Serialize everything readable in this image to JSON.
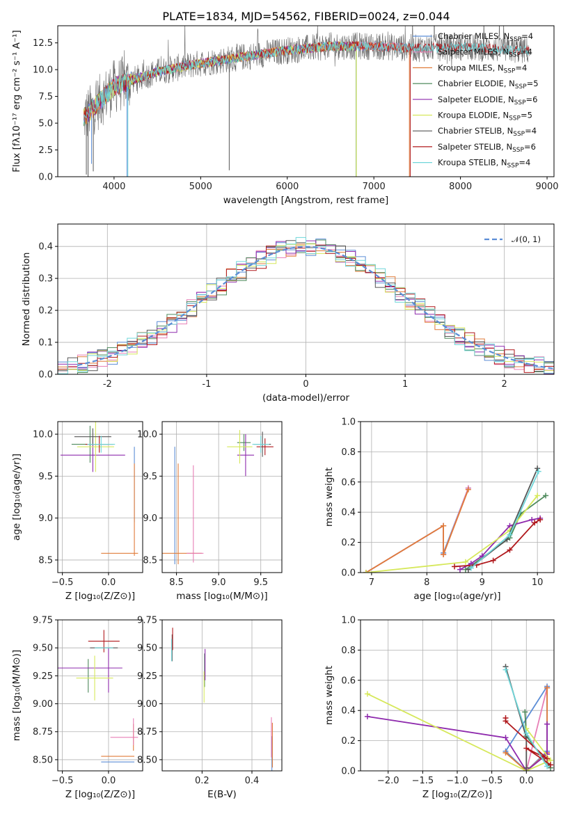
{
  "title": "PLATE=1834, MJD=54562, FIBERID=0024, z=0.044",
  "colors": {
    "Chabrier MILES": "#5b8dd6",
    "Salpeter MILES": "#e77fb6",
    "Kroupa MILES": "#e07b39",
    "Chabrier ELODIE": "#4e8a5c",
    "Salpeter ELODIE": "#8e2aad",
    "Kroupa ELODIE": "#d6e85a",
    "Chabrier STELIB": "#555555",
    "Salpeter STELIB": "#b0181c",
    "Kroupa STELIB": "#6fd6d9"
  },
  "chart_data": [
    {
      "id": "spectrum",
      "type": "line",
      "title": "PLATE=1834, MJD=54562, FIBERID=0024, z=0.044",
      "xlabel": "wavelength [Angstrom, rest frame]",
      "ylabel": "Flux [fλ10⁻¹⁷ erg cm⁻² s⁻¹ A⁻¹]",
      "xlim": [
        3350,
        9080
      ],
      "ylim": [
        0,
        14.1
      ],
      "xticks": [
        4000,
        5000,
        6000,
        7000,
        8000,
        9000
      ],
      "yticks": [
        0.0,
        2.5,
        5.0,
        7.5,
        10.0,
        12.5
      ],
      "ytick_labels": [
        "0.0",
        "2.5",
        "5.0",
        "7.5",
        "10.0",
        "12.5"
      ],
      "grid": false,
      "legend_position": "right",
      "legend": [
        {
          "main": "Chabrier MILES, N",
          "sub": "SSP",
          "tail": "=4"
        },
        {
          "main": "Salpeter MILES, N",
          "sub": "SSP",
          "tail": "=4"
        },
        {
          "main": "Kroupa MILES, N",
          "sub": "SSP",
          "tail": "=4"
        },
        {
          "main": "Chabrier ELODIE, N",
          "sub": "SSP",
          "tail": "=5"
        },
        {
          "main": "Salpeter ELODIE, N",
          "sub": "SSP",
          "tail": "=6"
        },
        {
          "main": "Kroupa ELODIE, N",
          "sub": "SSP",
          "tail": "=5"
        },
        {
          "main": "Chabrier STELIB, N",
          "sub": "SSP",
          "tail": "=4"
        },
        {
          "main": "Salpeter STELIB, N",
          "sub": "SSP",
          "tail": "=6"
        },
        {
          "main": "Kroupa STELIB, N",
          "sub": "SSP",
          "tail": "=4"
        }
      ],
      "continuum_x": [
        3650,
        3750,
        3900,
        4000,
        4200,
        4500,
        5000,
        5500,
        6000,
        6500,
        7000,
        7500,
        8000,
        8500,
        8800
      ],
      "continuum_y": [
        5.5,
        6.3,
        7.6,
        8.4,
        9.0,
        9.8,
        10.6,
        11.2,
        11.8,
        12.2,
        12.2,
        12.0,
        12.1,
        11.9,
        11.8
      ],
      "series": [
        {
          "name": "Chabrier MILES",
          "x_range": [
            3650,
            7420
          ],
          "spikes": [
            [
              4150,
              0
            ],
            [
              3740,
              1.2
            ]
          ]
        },
        {
          "name": "Salpeter MILES",
          "x_range": [
            3650,
            7420
          ],
          "spikes": []
        },
        {
          "name": "Kroupa MILES",
          "x_range": [
            3650,
            7420
          ],
          "spikes": [
            [
              7410,
              0
            ]
          ]
        },
        {
          "name": "Chabrier ELODIE",
          "x_range": [
            3650,
            6800
          ],
          "spikes": [
            [
              6795,
              0
            ]
          ]
        },
        {
          "name": "Salpeter ELODIE",
          "x_range": [
            3650,
            6800
          ],
          "spikes": []
        },
        {
          "name": "Kroupa ELODIE",
          "x_range": [
            3650,
            6800
          ],
          "spikes": [
            [
              6798,
              0
            ]
          ]
        },
        {
          "name": "Chabrier STELIB",
          "x_range": [
            3650,
            8800
          ],
          "spikes": [
            [
              3680,
              0.2
            ],
            [
              3760,
              0.5
            ],
            [
              3700,
              0
            ],
            [
              5330,
              0.6
            ]
          ]
        },
        {
          "name": "Salpeter STELIB",
          "x_range": [
            3650,
            8800
          ],
          "spikes": [
            [
              7420,
              0
            ]
          ]
        },
        {
          "name": "Kroupa STELIB",
          "x_range": [
            3650,
            8800
          ],
          "spikes": [
            [
              4160,
              0
            ]
          ]
        }
      ]
    },
    {
      "id": "residuals",
      "type": "line",
      "xlabel": "(data-model)/error",
      "ylabel": "Normed distribution",
      "xlim": [
        -2.5,
        2.5
      ],
      "ylim": [
        0,
        0.47
      ],
      "xticks": [
        -2,
        -1,
        0,
        1,
        2
      ],
      "yticks": [
        0.0,
        0.1,
        0.2,
        0.3,
        0.4
      ],
      "ytick_labels": [
        "0.0",
        "0.1",
        "0.2",
        "0.3",
        "0.4"
      ],
      "grid": true,
      "legend_position": "top-right",
      "legend": [
        "𝒩(0, 1)"
      ],
      "gaussian": {
        "mu": 0,
        "sigma": 1
      },
      "hist_bins": {
        "start": -2.5,
        "width": 0.1,
        "count": 50
      }
    },
    {
      "id": "Z_vs_age",
      "type": "scatter",
      "xlabel": "Z [log₁₀(Z/Z⊙)]",
      "ylabel": "age  [log₁₀(age/yr)]",
      "xlim": [
        -0.55,
        0.37
      ],
      "ylim": [
        8.35,
        10.15
      ],
      "xticks": [
        -0.5,
        0.0
      ],
      "xtick_labels": [
        "−0.5",
        "0.0"
      ],
      "yticks": [
        8.5,
        9.0,
        9.5,
        10.0
      ],
      "ytick_labels": [
        "8.5",
        "9.0",
        "9.5",
        "10.0"
      ],
      "grid": true,
      "points": [
        {
          "s": "Chabrier MILES",
          "x": 0.28,
          "y": 9.4,
          "ex": 0.0,
          "ey": 0.45
        },
        {
          "s": "Kroupa MILES",
          "x": 0.28,
          "y": 9.1,
          "ex": 0.0,
          "ey": 0.55
        },
        {
          "s": "Kroupa MILES",
          "x": 0.12,
          "y": 8.58,
          "ex": 0.2,
          "ey": 0.0
        },
        {
          "s": "Chabrier ELODIE",
          "x": -0.2,
          "y": 9.88,
          "ex": 0.2,
          "ey": 0.22
        },
        {
          "s": "Salpeter ELODIE",
          "x": -0.17,
          "y": 9.75,
          "ex": 0.35,
          "ey": 0.2
        },
        {
          "s": "Kroupa ELODIE",
          "x": -0.14,
          "y": 9.85,
          "ex": 0.2,
          "ey": 0.3
        },
        {
          "s": "Chabrier STELIB",
          "x": -0.17,
          "y": 9.97,
          "ex": 0.2,
          "ey": 0.1
        },
        {
          "s": "Salpeter STELIB",
          "x": -0.1,
          "y": 9.88,
          "ex": 0.15,
          "ey": 0.1
        },
        {
          "s": "Kroupa STELIB",
          "x": -0.08,
          "y": 9.88,
          "ex": 0.15,
          "ey": 0.1
        }
      ]
    },
    {
      "id": "mass_vs_age",
      "type": "scatter",
      "xlabel": "mass [log₁₀(M/M⊙)]",
      "ylabel": "",
      "xlim": [
        8.33,
        9.75
      ],
      "ylim": [
        8.35,
        10.15
      ],
      "xticks": [
        8.5,
        9.0,
        9.5
      ],
      "xtick_labels": [
        "8.5",
        "9.0",
        "9.5"
      ],
      "yticks": [
        8.5,
        9.0,
        9.5,
        10.0
      ],
      "ytick_labels": [
        "8.5",
        "9.0",
        "9.5",
        "10.0"
      ],
      "grid": true,
      "points": [
        {
          "s": "Chabrier MILES",
          "x": 8.48,
          "y": 9.15,
          "ex": 0.0,
          "ey": 0.7
        },
        {
          "s": "Kroupa MILES",
          "x": 8.52,
          "y": 9.05,
          "ex": 0.0,
          "ey": 0.6
        },
        {
          "s": "Salpeter MILES",
          "x": 8.7,
          "y": 9.05,
          "ex": 0.0,
          "ey": 0.58
        },
        {
          "s": "Kroupa MILES",
          "x": 8.55,
          "y": 8.58,
          "ex": 0.25,
          "ey": 0.0
        },
        {
          "s": "Salpeter MILES",
          "x": 8.72,
          "y": 8.58,
          "ex": 0.1,
          "ey": 0.0
        },
        {
          "s": "Chabrier ELODIE",
          "x": 9.3,
          "y": 9.9,
          "ex": 0.08,
          "ey": 0.1
        },
        {
          "s": "Salpeter ELODIE",
          "x": 9.32,
          "y": 9.75,
          "ex": 0.1,
          "ey": 0.25
        },
        {
          "s": "Kroupa ELODIE",
          "x": 9.25,
          "y": 9.85,
          "ex": 0.15,
          "ey": 0.2
        },
        {
          "s": "Chabrier STELIB",
          "x": 9.52,
          "y": 9.88,
          "ex": 0.1,
          "ey": 0.15
        },
        {
          "s": "Salpeter STELIB",
          "x": 9.55,
          "y": 9.85,
          "ex": 0.1,
          "ey": 0.1
        },
        {
          "s": "Kroupa STELIB",
          "x": 9.5,
          "y": 9.88,
          "ex": 0.1,
          "ey": 0.1
        }
      ]
    },
    {
      "id": "age_vs_massweight",
      "type": "line",
      "xlabel": "age  [log₁₀(age/yr)]",
      "ylabel": "mass weight",
      "xlim": [
        6.8,
        10.3
      ],
      "ylim": [
        0,
        1.0
      ],
      "xticks": [
        7,
        8,
        9,
        10
      ],
      "yticks": [
        0.0,
        0.2,
        0.4,
        0.6,
        0.8,
        1.0
      ],
      "ytick_labels": [
        "0.0",
        "0.2",
        "0.4",
        "0.6",
        "0.8",
        "1.0"
      ],
      "grid": true,
      "series": [
        {
          "name": "Chabrier MILES",
          "x": [
            6.9,
            8.3,
            8.3,
            8.75
          ],
          "y": [
            0.0,
            0.31,
            0.13,
            0.56
          ]
        },
        {
          "name": "Salpeter MILES",
          "x": [
            6.9,
            8.3,
            8.3,
            8.75
          ],
          "y": [
            0.0,
            0.31,
            0.12,
            0.56
          ]
        },
        {
          "name": "Kroupa MILES",
          "x": [
            6.9,
            8.3,
            8.3,
            8.75
          ],
          "y": [
            0.0,
            0.31,
            0.12,
            0.55
          ]
        },
        {
          "name": "Chabrier ELODIE",
          "x": [
            8.7,
            9.5,
            9.7,
            10.15
          ],
          "y": [
            0.02,
            0.23,
            0.39,
            0.51
          ]
        },
        {
          "name": "Salpeter ELODIE",
          "x": [
            8.6,
            8.8,
            9.0,
            9.5,
            9.9,
            10.05
          ],
          "y": [
            0.02,
            0.06,
            0.11,
            0.31,
            0.35,
            0.36
          ]
        },
        {
          "name": "Kroupa ELODIE",
          "x": [
            6.9,
            8.7,
            9.5,
            10.0
          ],
          "y": [
            0.0,
            0.07,
            0.28,
            0.51
          ]
        },
        {
          "name": "Chabrier STELIB",
          "x": [
            8.75,
            9.45,
            10.0
          ],
          "y": [
            0.02,
            0.22,
            0.69
          ]
        },
        {
          "name": "Salpeter STELIB",
          "x": [
            8.5,
            8.9,
            9.2,
            9.5,
            9.95,
            10.05
          ],
          "y": [
            0.04,
            0.05,
            0.08,
            0.15,
            0.33,
            0.35
          ]
        },
        {
          "name": "Kroupa STELIB",
          "x": [
            8.8,
            9.5,
            10.02
          ],
          "y": [
            0.03,
            0.25,
            0.67
          ]
        }
      ]
    },
    {
      "id": "Z_vs_mass",
      "type": "scatter",
      "xlabel": "Z [log₁₀(Z/Z⊙)]",
      "ylabel": "mass [log₁₀(M/M⊙)]",
      "xlim": [
        -0.55,
        0.37
      ],
      "ylim": [
        8.4,
        9.75
      ],
      "xticks": [
        -0.5,
        0.0
      ],
      "xtick_labels": [
        "−0.5",
        "0.0"
      ],
      "yticks": [
        8.5,
        8.75,
        9.0,
        9.25,
        9.5,
        9.75
      ],
      "ytick_labels": [
        "8.50",
        "8.75",
        "9.00",
        "9.25",
        "9.50",
        "9.75"
      ],
      "grid": true,
      "points": [
        {
          "s": "Chabrier MILES",
          "x": 0.1,
          "y": 8.48,
          "ex": 0.18,
          "ey": 0.0
        },
        {
          "s": "Kroupa MILES",
          "x": 0.1,
          "y": 8.53,
          "ex": 0.18,
          "ey": 0.0
        },
        {
          "s": "Salpeter MILES",
          "x": 0.17,
          "y": 8.7,
          "ex": 0.15,
          "ey": 0.0
        },
        {
          "s": "Kroupa MILES",
          "x": 0.27,
          "y": 8.7,
          "ex": 0.0,
          "ey": 0.12
        },
        {
          "s": "Salpeter MILES",
          "x": 0.27,
          "y": 8.75,
          "ex": 0.0,
          "ey": 0.12
        },
        {
          "s": "Chabrier ELODIE",
          "x": -0.22,
          "y": 9.25,
          "ex": 0.0,
          "ey": 0.15
        },
        {
          "s": "Salpeter ELODIE",
          "x": -0.2,
          "y": 9.32,
          "ex": 0.35,
          "ey": 0.0
        },
        {
          "s": "Salpeter ELODIE",
          "x": 0.0,
          "y": 9.3,
          "ex": 0.0,
          "ey": 0.2
        },
        {
          "s": "Kroupa ELODIE",
          "x": -0.15,
          "y": 9.23,
          "ex": 0.2,
          "ey": 0.2
        },
        {
          "s": "Chabrier STELIB",
          "x": -0.05,
          "y": 9.5,
          "ex": 0.15,
          "ey": 0.0
        },
        {
          "s": "Salpeter STELIB",
          "x": -0.05,
          "y": 9.56,
          "ex": 0.17,
          "ey": 0.1
        },
        {
          "s": "Kroupa STELIB",
          "x": -0.05,
          "y": 9.5,
          "ex": 0.1,
          "ey": 0.0
        }
      ]
    },
    {
      "id": "ebv_vs_mass",
      "type": "scatter",
      "xlabel": "E(B-V)",
      "ylabel": "",
      "xlim": [
        0.04,
        0.52
      ],
      "ylim": [
        8.4,
        9.75
      ],
      "xticks": [
        0.2,
        0.4
      ],
      "xtick_labels": [
        "0.2",
        "0.4"
      ],
      "yticks": [
        8.5,
        8.75,
        9.0,
        9.25,
        9.5,
        9.75
      ],
      "ytick_labels": [
        "8.50",
        "8.75",
        "9.00",
        "9.25",
        "9.50",
        "9.75"
      ],
      "grid": true,
      "points": [
        {
          "s": "Chabrier MILES",
          "x": 0.48,
          "y": 8.55,
          "ex": 0.0,
          "ey": 0.16
        },
        {
          "s": "Salpeter MILES",
          "x": 0.478,
          "y": 8.7,
          "ex": 0.0,
          "ey": 0.18
        },
        {
          "s": "Kroupa MILES",
          "x": 0.482,
          "y": 8.63,
          "ex": 0.0,
          "ey": 0.2
        },
        {
          "s": "Chabrier ELODIE",
          "x": 0.21,
          "y": 9.3,
          "ex": 0.0,
          "ey": 0.15
        },
        {
          "s": "Salpeter ELODIE",
          "x": 0.212,
          "y": 9.35,
          "ex": 0.0,
          "ey": 0.14
        },
        {
          "s": "Kroupa ELODIE",
          "x": 0.208,
          "y": 9.15,
          "ex": 0.0,
          "ey": 0.14
        },
        {
          "s": "Chabrier STELIB",
          "x": 0.08,
          "y": 9.5,
          "ex": 0.0,
          "ey": 0.12
        },
        {
          "s": "Salpeter STELIB",
          "x": 0.082,
          "y": 9.58,
          "ex": 0.0,
          "ey": 0.1
        },
        {
          "s": "Kroupa STELIB",
          "x": 0.078,
          "y": 9.48,
          "ex": 0.0,
          "ey": 0.1
        }
      ]
    },
    {
      "id": "Z_vs_massweight",
      "type": "line",
      "xlabel": "Z [log₁₀(Z/Z⊙)]",
      "ylabel": "mass weight",
      "xlim": [
        -2.4,
        0.4
      ],
      "ylim": [
        0,
        1.0
      ],
      "xticks": [
        -2.0,
        -1.5,
        -1.0,
        -0.5,
        0.0
      ],
      "xtick_labels": [
        "−2.0",
        "−1.5",
        "−1.0",
        "−0.5",
        "0.0"
      ],
      "yticks": [
        0.0,
        0.2,
        0.4,
        0.6,
        0.8,
        1.0
      ],
      "ytick_labels": [
        "0.0",
        "0.2",
        "0.4",
        "0.6",
        "0.8",
        "1.0"
      ],
      "grid": true,
      "series": [
        {
          "name": "Chabrier MILES",
          "x": [
            0.3,
            0.3,
            0.0,
            -0.3,
            0.3
          ],
          "y": [
            0.55,
            0.13,
            0.0,
            0.13,
            0.56
          ]
        },
        {
          "name": "Salpeter MILES",
          "x": [
            0.3,
            0.0,
            0.3
          ],
          "y": [
            0.12,
            0.0,
            0.55
          ]
        },
        {
          "name": "Kroupa MILES",
          "x": [
            -0.3,
            0.0,
            0.3,
            0.3
          ],
          "y": [
            0.12,
            0.0,
            0.12,
            0.55
          ]
        },
        {
          "name": "Chabrier ELODIE",
          "x": [
            -0.02,
            0.0,
            0.35
          ],
          "y": [
            0.39,
            0.23,
            0.02
          ]
        },
        {
          "name": "Salpeter ELODIE",
          "x": [
            -2.3,
            -0.3,
            0.0,
            0.3,
            0.3
          ],
          "y": [
            0.36,
            0.22,
            0.0,
            0.11,
            0.31
          ]
        },
        {
          "name": "Kroupa ELODIE",
          "x": [
            -2.3,
            0.0,
            0.35,
            0.0
          ],
          "y": [
            0.51,
            0.0,
            0.07,
            0.28
          ]
        },
        {
          "name": "Chabrier STELIB",
          "x": [
            -0.3,
            0.0,
            0.0
          ],
          "y": [
            0.69,
            0.22,
            0.02
          ]
        },
        {
          "name": "Salpeter STELIB",
          "x": [
            -0.3,
            -0.3,
            0.3,
            0.0,
            0.35
          ],
          "y": [
            0.35,
            0.33,
            0.08,
            0.15,
            0.04
          ]
        },
        {
          "name": "Kroupa STELIB",
          "x": [
            -0.3,
            0.0,
            0.3
          ],
          "y": [
            0.67,
            0.25,
            0.03
          ]
        }
      ]
    }
  ]
}
